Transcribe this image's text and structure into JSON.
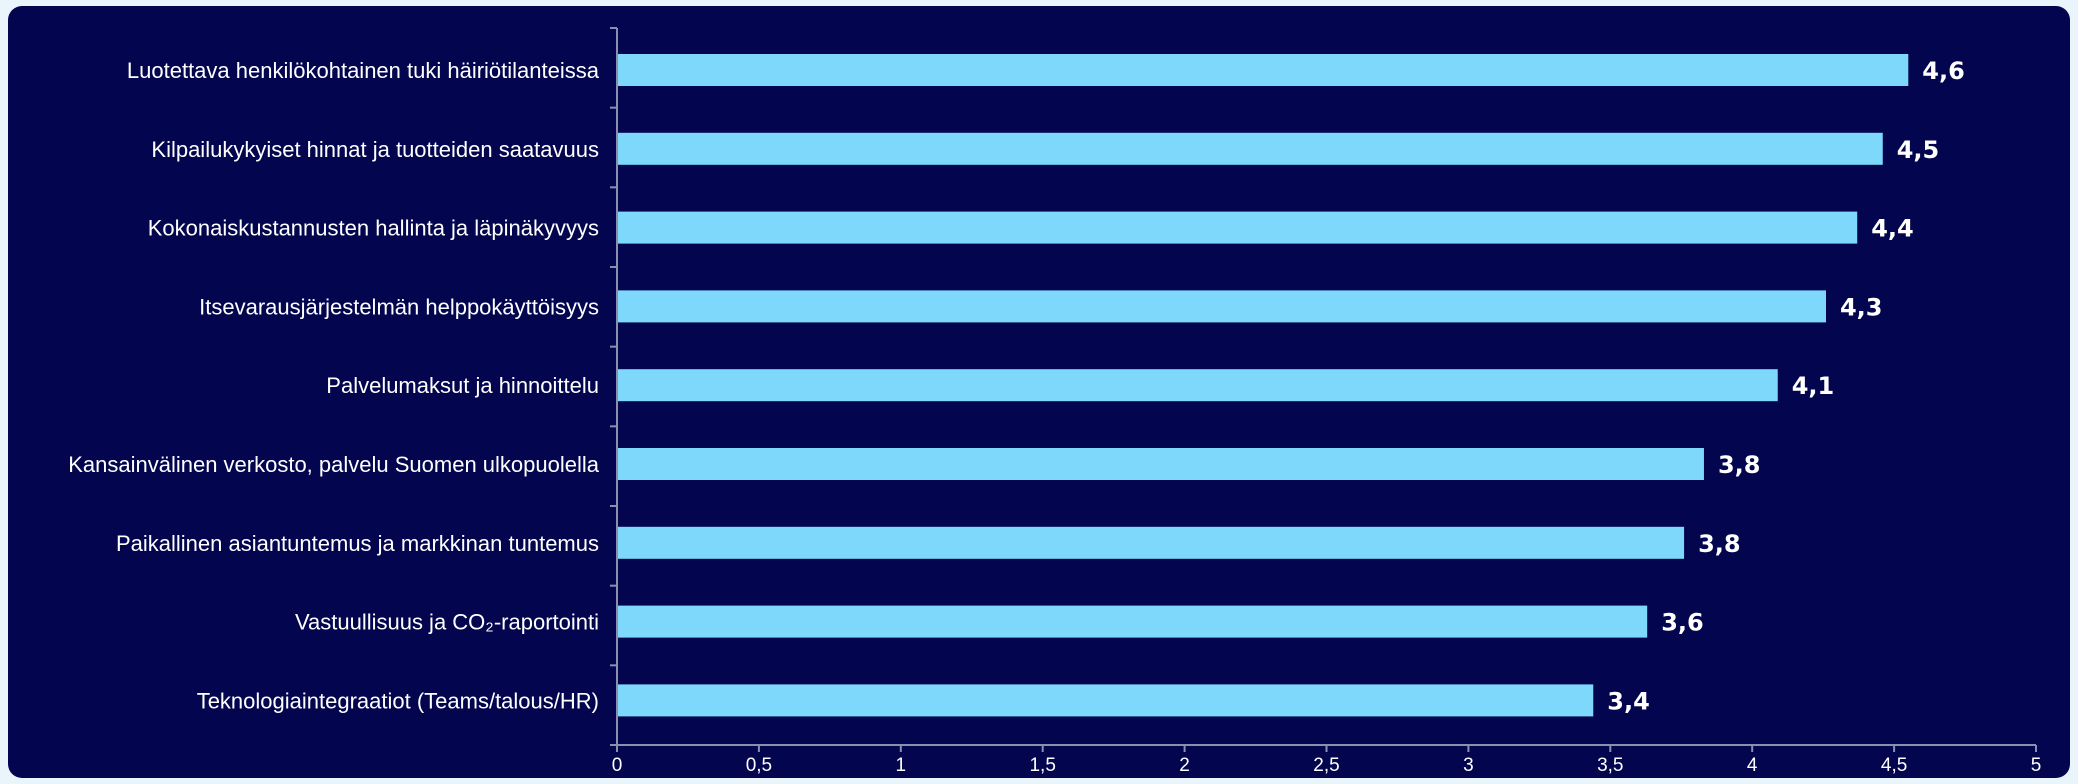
{
  "colors": {
    "background": "#03064f",
    "bar": "#7dd8fc",
    "text": "#ffffff",
    "axis": "#8a8fb0"
  },
  "chart_data": {
    "type": "bar",
    "orientation": "horizontal",
    "title": "",
    "xlabel": "",
    "ylabel": "",
    "categories": [
      "Luotettava henkilökohtainen tuki häiriötilanteissa",
      "Kilpailukykyiset hinnat ja tuotteiden saatavuus",
      "Kokonaiskustannusten hallinta ja läpinäkyvyys",
      "Itsevarausjärjestelmän helppokäyttöisyys",
      "Palvelumaksut ja hinnoittelu",
      "Kansainvälinen verkosto, palvelu Suomen ulkopuolella",
      "Paikallinen asiantuntemus ja markkinan tuntemus",
      "Vastuullisuus ja CO₂-raportointi",
      "Teknologiaintegraatiot (Teams/talous/HR)"
    ],
    "values": [
      4.55,
      4.46,
      4.37,
      4.26,
      4.09,
      3.83,
      3.76,
      3.63,
      3.44
    ],
    "data_labels": [
      "4,6",
      "4,5",
      "4,4",
      "4,3",
      "4,1",
      "3,8",
      "3,8",
      "3,6",
      "3,4"
    ],
    "xlim": [
      0,
      5
    ],
    "x_ticks": [
      0,
      0.5,
      1,
      1.5,
      2,
      2.5,
      3,
      3.5,
      4,
      4.5,
      5
    ],
    "x_tick_labels": [
      "0",
      "0,5",
      "1",
      "1,5",
      "2",
      "2,5",
      "3",
      "3,5",
      "4",
      "4,5",
      "5"
    ],
    "grid": false,
    "legend": "none"
  }
}
